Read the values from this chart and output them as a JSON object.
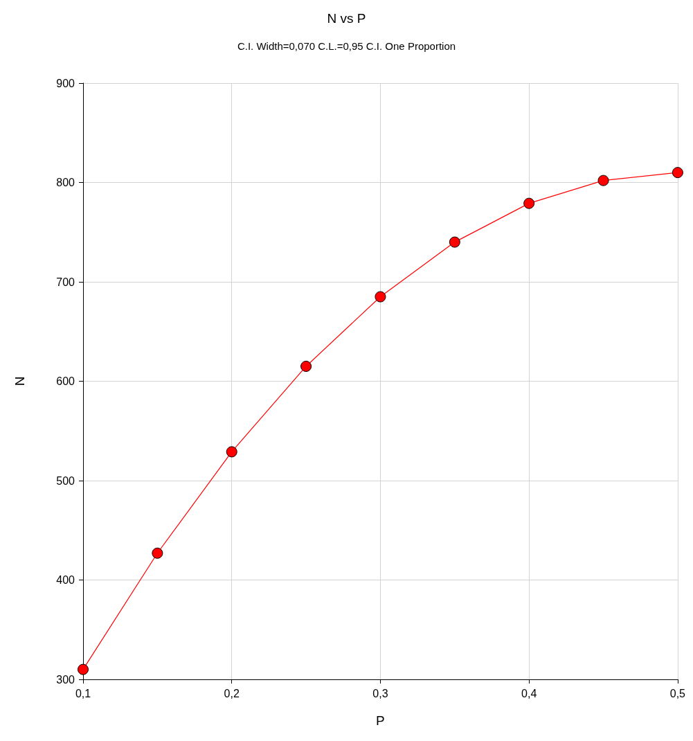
{
  "chart_data": {
    "type": "line",
    "title": "N vs P",
    "subtitle": "C.I. Width=0,070 C.L.=0,95 C.I. One Proportion",
    "xlabel": "P",
    "ylabel": "N",
    "x": [
      0.1,
      0.15,
      0.2,
      0.25,
      0.3,
      0.35,
      0.4,
      0.45,
      0.5
    ],
    "series": [
      {
        "color": "#ff0000",
        "values": [
          310,
          427,
          529,
          615,
          685,
          740,
          779,
          802,
          810
        ]
      }
    ],
    "xlim": [
      0.1,
      0.5
    ],
    "xticks": [
      {
        "value": 0.1,
        "label": "0,1"
      },
      {
        "value": 0.2,
        "label": "0,2"
      },
      {
        "value": 0.3,
        "label": "0,3"
      },
      {
        "value": 0.4,
        "label": "0,4"
      },
      {
        "value": 0.5,
        "label": "0,5"
      }
    ],
    "ylim": [
      300,
      900
    ],
    "yticks": [
      300,
      400,
      500,
      600,
      700,
      800,
      900
    ],
    "grid": true,
    "marker": "circle",
    "line_style": "solid"
  }
}
